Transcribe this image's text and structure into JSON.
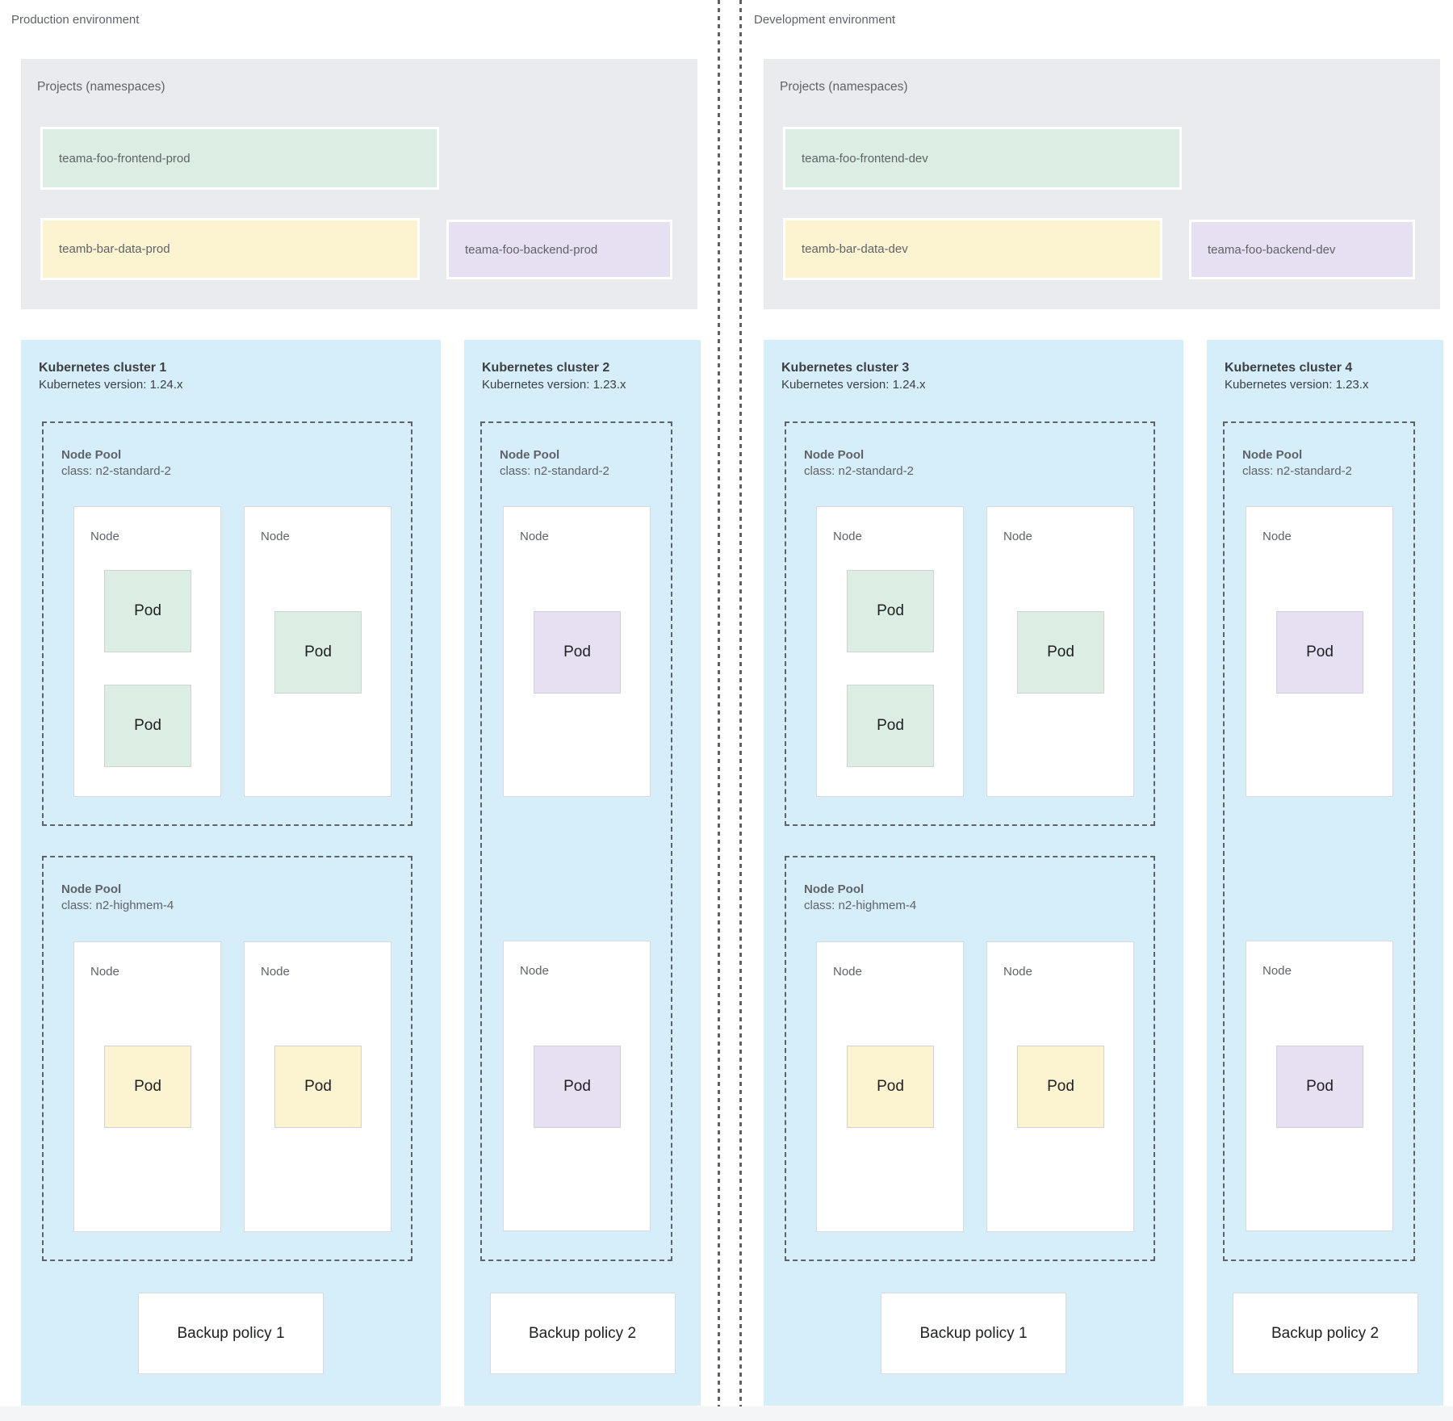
{
  "colors": {
    "cluster_background": "#d6edfa",
    "projects_background": "#e9ebee",
    "namespace_green": "#dcede4",
    "namespace_yellow": "#fcf3d1",
    "namespace_purple": "#e7e0f3",
    "dashed_border": "#5f6368",
    "text_gray": "#5f6368",
    "text_dark": "#202124"
  },
  "labels": {
    "node": "Node",
    "pod": "Pod"
  },
  "environments": [
    {
      "label": "Production environment",
      "projects": {
        "title": "Projects (namespaces)",
        "items": [
          "teama-foo-frontend-prod",
          "teamb-bar-data-prod",
          "teama-foo-backend-prod"
        ]
      },
      "clusters": [
        {
          "title": "Kubernetes cluster 1",
          "version": "Kubernetes version: 1.24.x",
          "pools": [
            {
              "name": "Node Pool",
              "class": "class: n2-standard-2"
            },
            {
              "name": "Node Pool",
              "class": "class: n2-highmem-4"
            }
          ],
          "backup": "Backup policy 1"
        },
        {
          "title": "Kubernetes cluster 2",
          "version": "Kubernetes version: 1.23.x",
          "pools": [
            {
              "name": "Node Pool",
              "class": "class: n2-standard-2"
            }
          ],
          "backup": "Backup policy 2"
        }
      ]
    },
    {
      "label": "Development environment",
      "projects": {
        "title": "Projects (namespaces)",
        "items": [
          "teama-foo-frontend-dev",
          "teamb-bar-data-dev",
          "teama-foo-backend-dev"
        ]
      },
      "clusters": [
        {
          "title": "Kubernetes cluster 3",
          "version": "Kubernetes version: 1.24.x",
          "pools": [
            {
              "name": "Node Pool",
              "class": "class: n2-standard-2"
            },
            {
              "name": "Node Pool",
              "class": "class: n2-highmem-4"
            }
          ],
          "backup": "Backup policy 1"
        },
        {
          "title": "Kubernetes cluster 4",
          "version": "Kubernetes version: 1.23.x",
          "pools": [
            {
              "name": "Node Pool",
              "class": "class: n2-standard-2"
            }
          ],
          "backup": "Backup policy 2"
        }
      ]
    }
  ]
}
